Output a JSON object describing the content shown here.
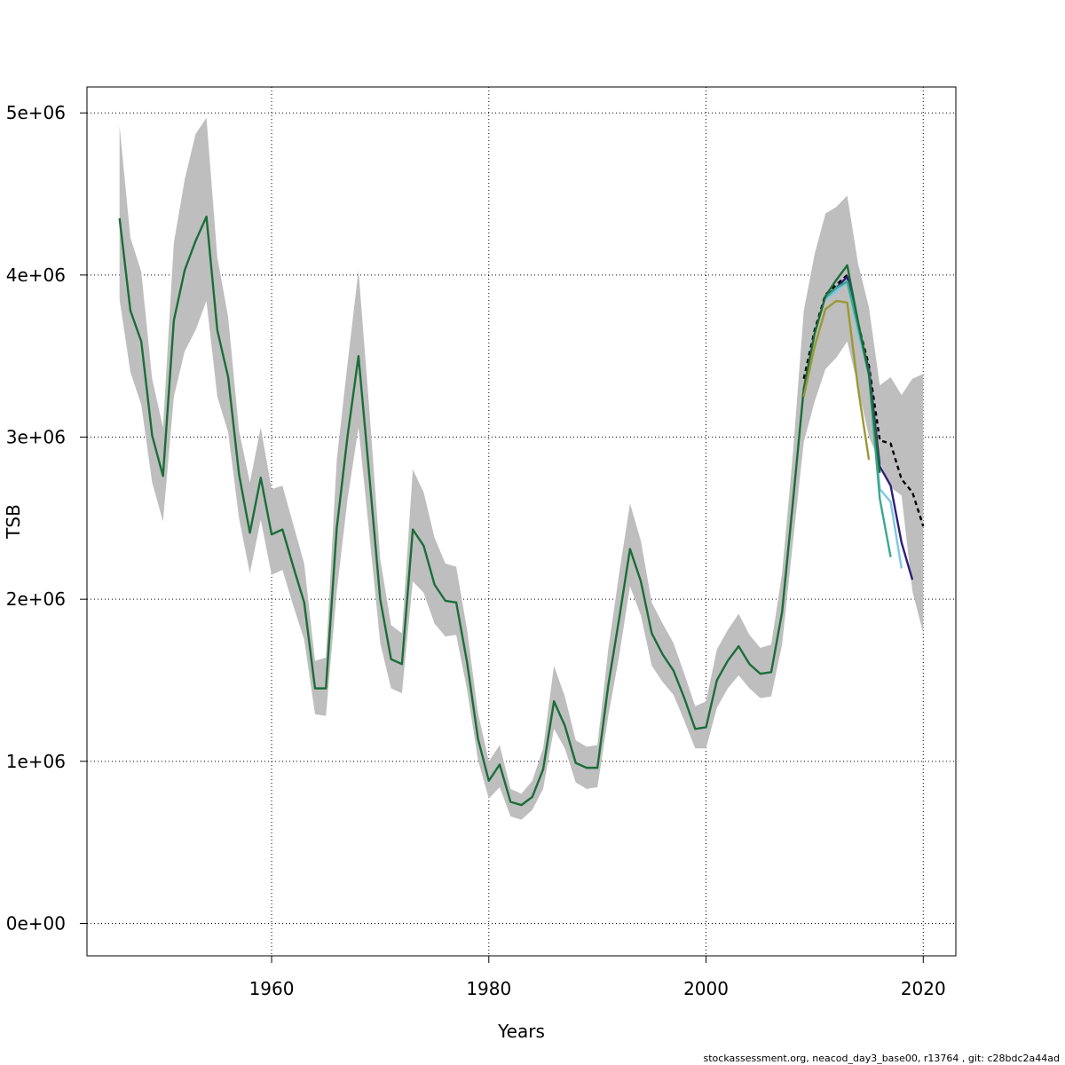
{
  "chart_data": {
    "type": "line",
    "xlabel": "Years",
    "ylabel": "TSB",
    "xlim": [
      1943,
      2023
    ],
    "ylim": [
      -200000,
      5160000
    ],
    "x_ticks": [
      1960,
      1980,
      2000,
      2020
    ],
    "x_tick_labels": [
      "1960",
      "1980",
      "2000",
      "2020"
    ],
    "y_ticks": [
      0,
      1000000,
      2000000,
      3000000,
      4000000,
      5000000
    ],
    "y_tick_labels": [
      "0e+00",
      "1e+06",
      "2e+06",
      "3e+06",
      "4e+06",
      "5e+06"
    ],
    "grid": true,
    "footer": "stockassessment.org, neacod_day3_base00, r13764 , git: c28bdc2a44ad",
    "band": {
      "x": [
        1946,
        1947,
        1948,
        1949,
        1950,
        1951,
        1952,
        1953,
        1954,
        1955,
        1956,
        1957,
        1958,
        1959,
        1960,
        1961,
        1962,
        1963,
        1964,
        1965,
        1966,
        1967,
        1968,
        1969,
        1970,
        1971,
        1972,
        1973,
        1974,
        1975,
        1976,
        1977,
        1978,
        1979,
        1980,
        1981,
        1982,
        1983,
        1984,
        1985,
        1986,
        1987,
        1988,
        1989,
        1990,
        1991,
        1992,
        1993,
        1994,
        1995,
        1996,
        1997,
        1998,
        1999,
        2000,
        2001,
        2002,
        2003,
        2004,
        2005,
        2006,
        2007,
        2008,
        2009,
        2010,
        2011,
        2012,
        2013,
        2014,
        2015,
        2016,
        2017,
        2018,
        2019,
        2020
      ],
      "lower": [
        3850000,
        3400000,
        3200000,
        2720000,
        2480000,
        3250000,
        3530000,
        3660000,
        3840000,
        3250000,
        3030000,
        2500000,
        2160000,
        2490000,
        2150000,
        2180000,
        1960000,
        1750000,
        1290000,
        1280000,
        2050000,
        2620000,
        3060000,
        2400000,
        1730000,
        1450000,
        1420000,
        2110000,
        2040000,
        1850000,
        1770000,
        1780000,
        1440000,
        1010000,
        770000,
        840000,
        660000,
        640000,
        700000,
        830000,
        1200000,
        1080000,
        870000,
        830000,
        840000,
        1280000,
        1650000,
        2080000,
        1900000,
        1590000,
        1490000,
        1410000,
        1250000,
        1080000,
        1080000,
        1330000,
        1450000,
        1530000,
        1450000,
        1390000,
        1400000,
        1720000,
        2350000,
        2970000,
        3220000,
        3420000,
        3490000,
        3590000,
        3310000,
        3000000,
        2850000,
        2690000,
        2640000,
        2050000,
        1790000
      ],
      "upper": [
        4920000,
        4230000,
        4020000,
        3360000,
        3060000,
        4200000,
        4590000,
        4870000,
        4970000,
        4110000,
        3740000,
        3040000,
        2720000,
        3060000,
        2680000,
        2700000,
        2460000,
        2220000,
        1620000,
        1640000,
        2860000,
        3460000,
        4030000,
        3170000,
        2250000,
        1840000,
        1790000,
        2800000,
        2660000,
        2380000,
        2220000,
        2200000,
        1810000,
        1300000,
        1000000,
        1100000,
        830000,
        800000,
        880000,
        1080000,
        1590000,
        1400000,
        1130000,
        1090000,
        1100000,
        1690000,
        2160000,
        2590000,
        2360000,
        1980000,
        1850000,
        1730000,
        1540000,
        1340000,
        1370000,
        1690000,
        1810000,
        1910000,
        1780000,
        1700000,
        1720000,
        2160000,
        2900000,
        3780000,
        4130000,
        4380000,
        4420000,
        4490000,
        4070000,
        3800000,
        3320000,
        3370000,
        3260000,
        3360000,
        3390000
      ]
    },
    "series": [
      {
        "color": "#000000",
        "dash": true,
        "x": [
          2009,
          2010,
          2011,
          2012,
          2013,
          2014,
          2015,
          2016,
          2017,
          2018,
          2019,
          2020
        ],
        "values": [
          3360000,
          3660000,
          3880000,
          3940000,
          4000000,
          3700000,
          3440000,
          2980000,
          2960000,
          2740000,
          2660000,
          2450000
        ]
      },
      {
        "color": "#2f1e7a",
        "x": [
          2011,
          2012,
          2013,
          2014,
          2015,
          2016,
          2017,
          2018,
          2019
        ],
        "values": [
          3870000,
          3920000,
          3990000,
          3660000,
          3420000,
          2820000,
          2700000,
          2350000,
          2120000
        ]
      },
      {
        "color": "#7ec8e3",
        "x": [
          2011,
          2012,
          2013,
          2014,
          2015,
          2016,
          2017,
          2018
        ],
        "values": [
          3850000,
          3900000,
          3960000,
          3640000,
          3400000,
          2680000,
          2600000,
          2190000
        ]
      },
      {
        "color": "#3aa88c",
        "x": [
          2011,
          2012,
          2013,
          2014,
          2015,
          2016,
          2017
        ],
        "values": [
          3860000,
          3920000,
          3960000,
          3680000,
          3380000,
          2620000,
          2260000
        ]
      },
      {
        "color": "#1a6e38",
        "x": [
          1946,
          1947,
          1948,
          1949,
          1950,
          1951,
          1952,
          1953,
          1954,
          1955,
          1956,
          1957,
          1958,
          1959,
          1960,
          1961,
          1962,
          1963,
          1964,
          1965,
          1966,
          1967,
          1968,
          1969,
          1970,
          1971,
          1972,
          1973,
          1974,
          1975,
          1976,
          1977,
          1978,
          1979,
          1980,
          1981,
          1982,
          1983,
          1984,
          1985,
          1986,
          1987,
          1988,
          1989,
          1990,
          1991,
          1992,
          1993,
          1994,
          1995,
          1996,
          1997,
          1998,
          1999,
          2000,
          2001,
          2002,
          2003,
          2004,
          2005,
          2006,
          2007,
          2008,
          2009,
          2010,
          2011,
          2012,
          2013,
          2014,
          2015,
          2016
        ],
        "values": [
          4350000,
          3780000,
          3590000,
          3010000,
          2760000,
          3720000,
          4030000,
          4210000,
          4360000,
          3660000,
          3370000,
          2770000,
          2410000,
          2750000,
          2400000,
          2430000,
          2200000,
          1980000,
          1450000,
          1450000,
          2440000,
          3010000,
          3500000,
          2760000,
          2000000,
          1630000,
          1600000,
          2430000,
          2330000,
          2090000,
          1990000,
          1980000,
          1610000,
          1140000,
          880000,
          980000,
          750000,
          730000,
          780000,
          950000,
          1370000,
          1220000,
          990000,
          960000,
          960000,
          1470000,
          1880000,
          2310000,
          2110000,
          1790000,
          1660000,
          1560000,
          1390000,
          1200000,
          1210000,
          1500000,
          1620000,
          1710000,
          1600000,
          1540000,
          1550000,
          1920000,
          2600000,
          3300000,
          3640000,
          3870000,
          3970000,
          4060000,
          3710000,
          3390000,
          2780000
        ]
      },
      {
        "color": "#9a9a35",
        "x": [
          2009,
          2010,
          2011,
          2012,
          2013,
          2014,
          2015
        ],
        "values": [
          3250000,
          3560000,
          3790000,
          3840000,
          3830000,
          3300000,
          2860000
        ]
      }
    ]
  }
}
